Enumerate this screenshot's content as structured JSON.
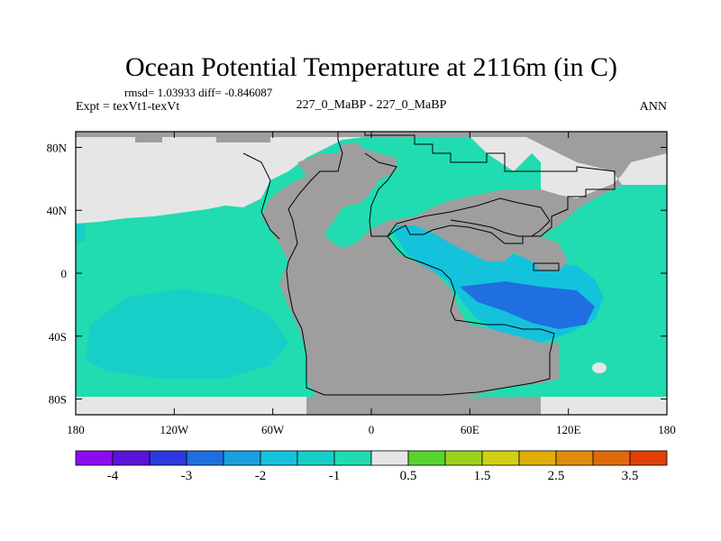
{
  "chart_data": {
    "type": "heatmap",
    "title": "Ocean Potential Temperature at 2116m (in C)",
    "stats": "rmsd= 1.03933 diff= -0.846087",
    "expt": "Expt = texVt1-texVt",
    "case": "227_0_MaBP - 227_0_MaBP",
    "season": "ANN",
    "x_ticks": [
      "180",
      "120W",
      "60W",
      "0",
      "60E",
      "120E",
      "180"
    ],
    "x_values": [
      -180,
      -120,
      -60,
      0,
      60,
      120,
      180
    ],
    "y_ticks": [
      "80N",
      "40N",
      "0",
      "40S",
      "80S"
    ],
    "y_values": [
      80,
      40,
      0,
      -40,
      -80
    ],
    "xlim": [
      -180,
      180
    ],
    "ylim": [
      -90,
      90
    ],
    "colorbar": {
      "colors": [
        "#8b0cf0",
        "#5a14d8",
        "#2a3ae0",
        "#1f6fe0",
        "#1aa0e0",
        "#14c2dc",
        "#16d0c8",
        "#20dcb0",
        "#e6e6e6",
        "#58d42a",
        "#9cd21c",
        "#d0d010",
        "#e0b006",
        "#e08c08",
        "#e06a0a",
        "#e04008"
      ],
      "labels": [
        "-4",
        "-3",
        "-2",
        "-1",
        "0.5",
        "1.5",
        "2.5",
        "3.5"
      ],
      "label_after_bin": [
        1,
        3,
        5,
        7,
        9,
        11,
        13,
        15
      ]
    }
  }
}
